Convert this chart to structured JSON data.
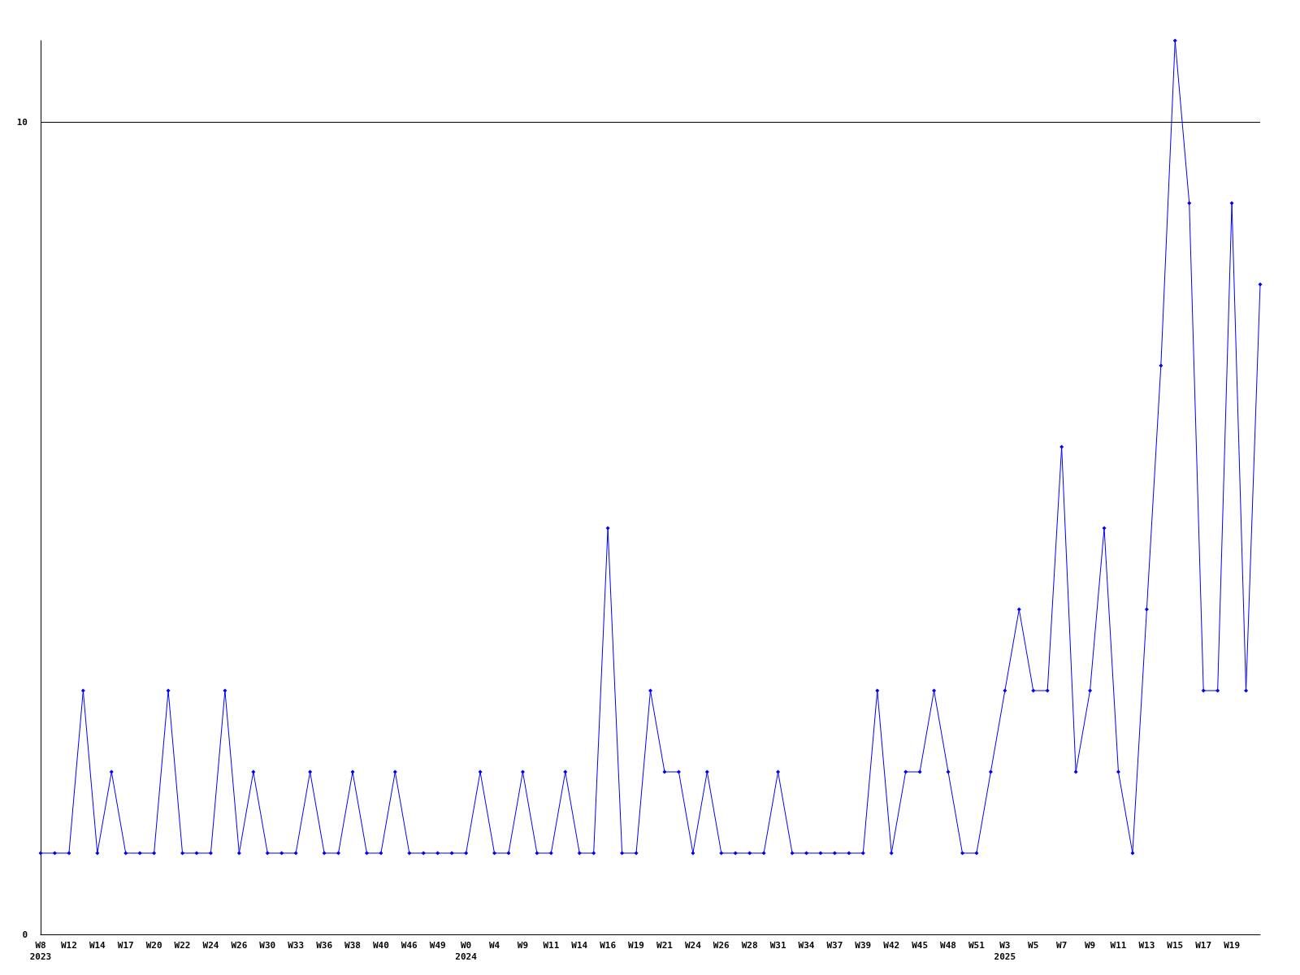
{
  "chart_data": {
    "type": "line",
    "categories": [
      "W8\n2023",
      null,
      "W12",
      null,
      "W14",
      null,
      "W17",
      null,
      "W20",
      null,
      "W22",
      null,
      "W24",
      null,
      "W26",
      null,
      "W30",
      null,
      "W33",
      null,
      "W36",
      null,
      "W38",
      null,
      "W40",
      null,
      "W46",
      null,
      "W49",
      null,
      "W0\n2024",
      null,
      "W4",
      null,
      "W9",
      null,
      "W11",
      null,
      "W14",
      null,
      "W16",
      null,
      "W19",
      null,
      "W21",
      null,
      "W24",
      null,
      "W26",
      null,
      "W28",
      null,
      "W31",
      null,
      "W34",
      null,
      "W37",
      null,
      "W39",
      null,
      "W42",
      null,
      "W45",
      null,
      "W48",
      null,
      "W51",
      null,
      "W3\n2025",
      null,
      "W5",
      null,
      "W7",
      null,
      "W9",
      null,
      "W11",
      null,
      "W13",
      null,
      "W15",
      null,
      "W17",
      null,
      "W19",
      null,
      null
    ],
    "series": [
      {
        "color": "#0000ff",
        "values": [
          1,
          1,
          1,
          3,
          1,
          2,
          1,
          1,
          1,
          3,
          1,
          1,
          1,
          3,
          1,
          2,
          1,
          1,
          1,
          2,
          1,
          1,
          2,
          1,
          1,
          2,
          1,
          1,
          1,
          1,
          1,
          2,
          1,
          1,
          2,
          1,
          1,
          2,
          1,
          1,
          5,
          1,
          1,
          3,
          2,
          2,
          1,
          2,
          1,
          1,
          1,
          1,
          2,
          1,
          1,
          1,
          1,
          1,
          1,
          3,
          1,
          2,
          2,
          3,
          2,
          1,
          1,
          2,
          3,
          4,
          3,
          3,
          6,
          2,
          3,
          5,
          2,
          1,
          4,
          7,
          11,
          9,
          3,
          3,
          9,
          3,
          8
        ]
      }
    ],
    "ylim": [
      0,
      11
    ],
    "yticks": [
      0,
      10
    ],
    "grid": "y",
    "marker": "diamond",
    "line_style": "solid"
  }
}
